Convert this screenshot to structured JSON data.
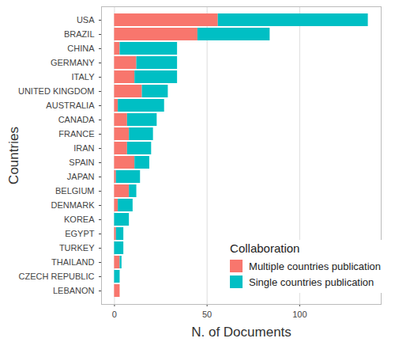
{
  "chart_data": {
    "type": "bar",
    "orientation": "horizontal",
    "stacked": true,
    "x_label": "N. of Documents",
    "y_label": "Countries",
    "legend_title": "Collaboration",
    "legend": "lower right",
    "grid": true,
    "categories": [
      "USA",
      "BRAZIL",
      "CHINA",
      "GERMANY",
      "ITALY",
      "UNITED KINGDOM",
      "AUSTRALIA",
      "CANADA",
      "FRANCE",
      "IRAN",
      "SPAIN",
      "JAPAN",
      "BELGIUM",
      "DENMARK",
      "KOREA",
      "EGYPT",
      "TURKEY",
      "THAILAND",
      "CZECH REPUBLIC",
      "LEBANON"
    ],
    "series": [
      {
        "name": "Multiple countries publication",
        "color": "#F8766D",
        "values": [
          56,
          45,
          3,
          12,
          11,
          15,
          2,
          7,
          8,
          7,
          11,
          1,
          8,
          2,
          0,
          1,
          0,
          3,
          0,
          3
        ]
      },
      {
        "name": "Single countries publication",
        "color": "#00BFC4",
        "values": [
          81,
          39,
          31,
          22,
          23,
          14,
          25,
          16,
          13,
          13,
          8,
          13,
          4,
          8,
          8,
          4,
          5,
          1,
          3,
          0
        ]
      }
    ],
    "xlim": [
      -7,
      144
    ],
    "xticks": [
      0,
      50,
      100
    ]
  }
}
